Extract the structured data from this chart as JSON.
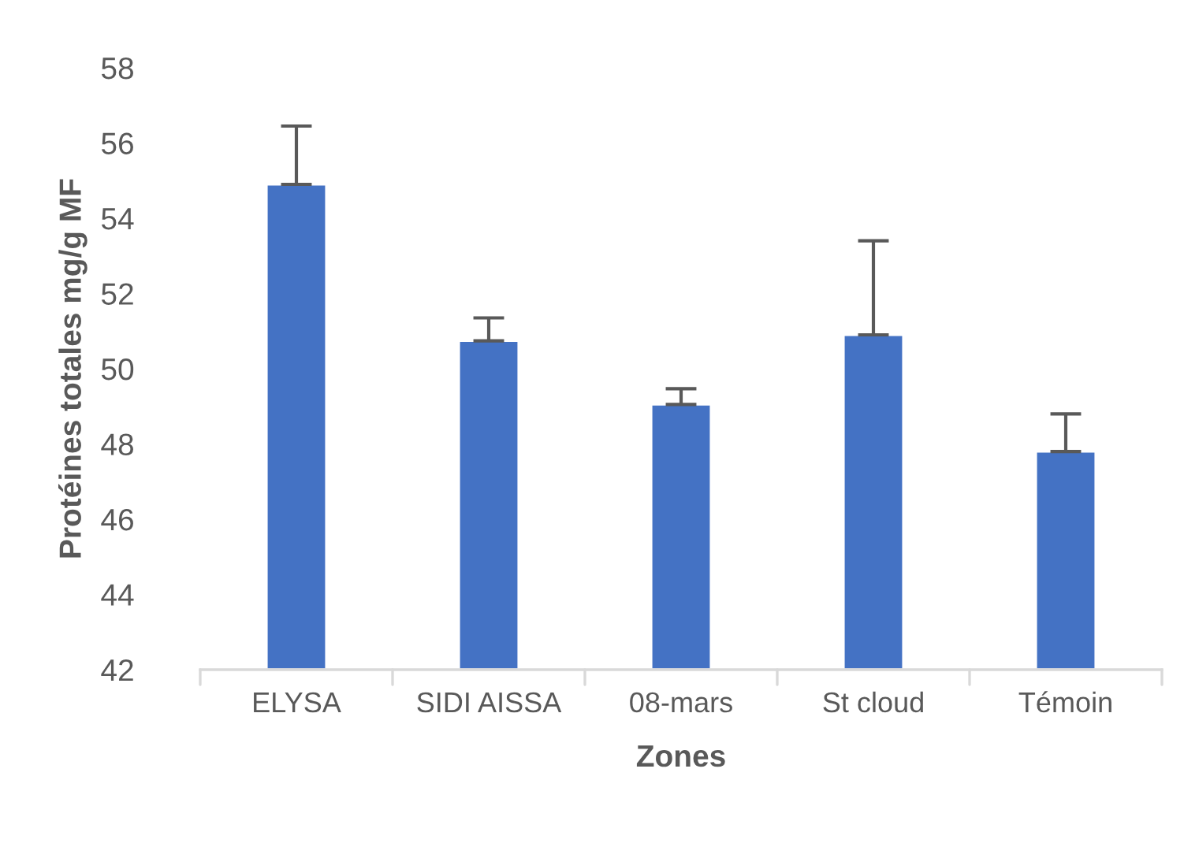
{
  "chart_data": {
    "type": "bar",
    "xlabel": "Zones",
    "ylabel": "Protéines totales mg/g MF",
    "categories": [
      "ELYSA",
      "SIDI AISSA",
      "08-mars",
      "St cloud",
      "Témoin"
    ],
    "values": [
      54.9,
      50.74,
      49.05,
      50.9,
      47.8
    ],
    "errors": [
      [
        54.9,
        56.45
      ],
      [
        50.74,
        51.35
      ],
      [
        49.05,
        49.47
      ],
      [
        50.9,
        53.4
      ],
      [
        47.8,
        48.8
      ]
    ],
    "color": "#4472c4",
    "ylim": [
      42,
      58
    ],
    "yticks": [
      42,
      44,
      46,
      48,
      50,
      52,
      54,
      56,
      58
    ],
    "grid": false,
    "legend": false
  }
}
